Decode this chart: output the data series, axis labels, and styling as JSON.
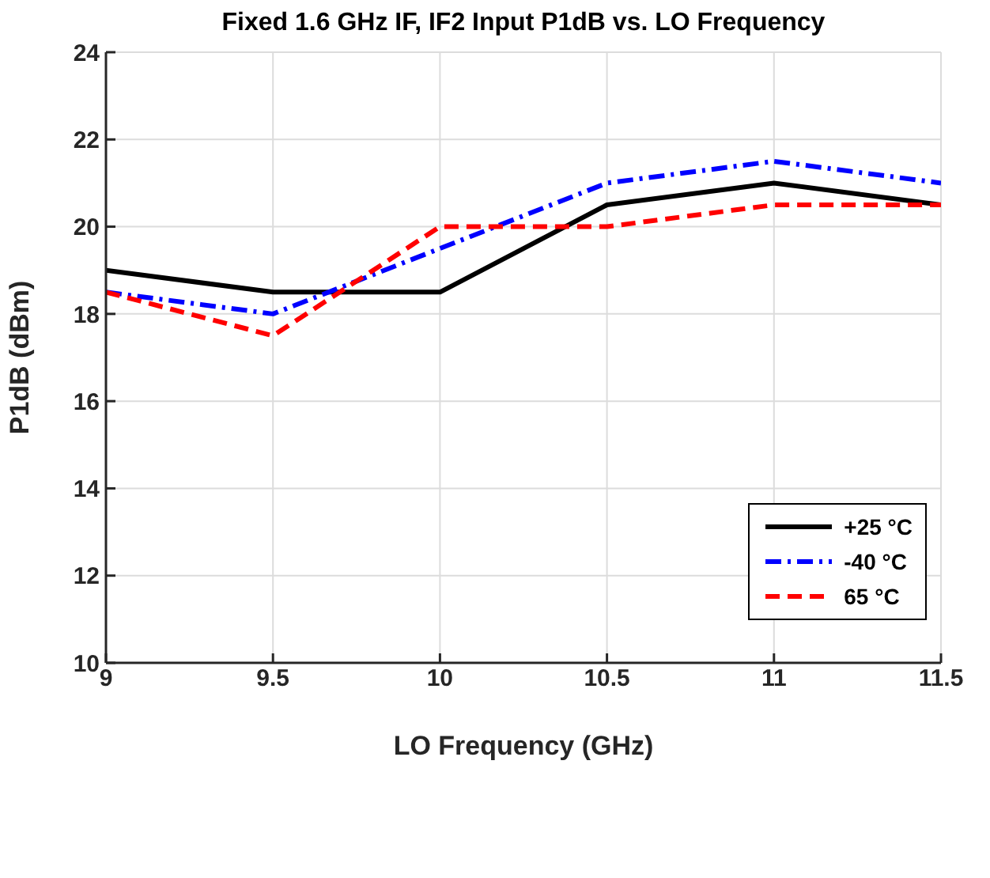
{
  "chart_data": {
    "type": "line",
    "title": "Fixed 1.6 GHz IF, IF2 Input P1dB vs. LO Frequency",
    "xlabel": "LO Frequency (GHz)",
    "ylabel": "P1dB (dBm)",
    "x": [
      9,
      9.5,
      10,
      10.5,
      11,
      11.5
    ],
    "series": [
      {
        "name": "+25 °C",
        "color": "#000000",
        "line_style": "solid",
        "values": [
          19,
          18.5,
          18.5,
          20.5,
          21,
          20.5
        ]
      },
      {
        "name": "-40 °C",
        "color": "#0000ff",
        "line_style": "dashdot",
        "values": [
          18.5,
          18,
          19.5,
          21,
          21.5,
          21
        ]
      },
      {
        "name": "65 °C",
        "color": "#ff0000",
        "line_style": "dashed",
        "values": [
          18.5,
          17.5,
          20,
          20,
          20.5,
          20.5
        ]
      }
    ],
    "xlim": [
      9,
      11.5
    ],
    "xticks": [
      9,
      9.5,
      10,
      10.5,
      11,
      11.5
    ],
    "ylim": [
      10,
      24
    ],
    "yticks": [
      10,
      12,
      14,
      16,
      18,
      20,
      22,
      24
    ],
    "grid": true,
    "legend": "right",
    "marker": "none"
  }
}
